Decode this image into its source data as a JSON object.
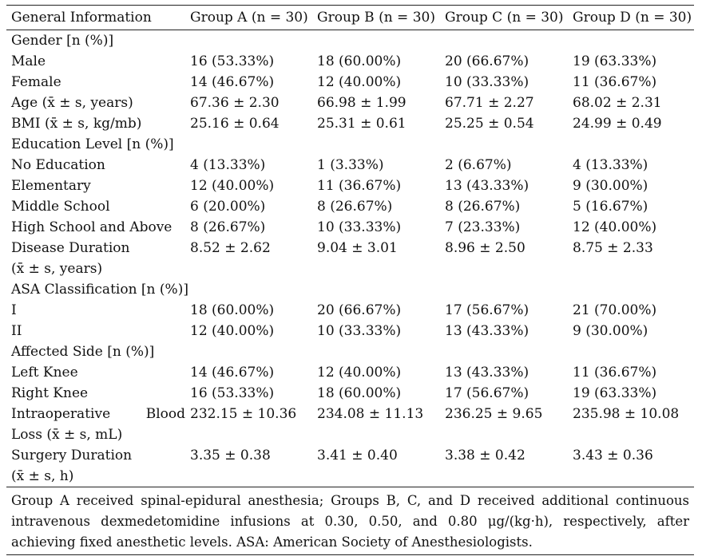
{
  "columns": [
    "General Information",
    "Group A (n = 30)",
    "Group B (n = 30)",
    "Group C (n = 30)",
    "Group D (n = 30)"
  ],
  "rows": [
    {
      "label": "Gender [n (%)]",
      "values": [
        "",
        "",
        "",
        ""
      ]
    },
    {
      "label": "Male",
      "values": [
        "16 (53.33%)",
        "18 (60.00%)",
        "20 (66.67%)",
        "19 (63.33%)"
      ]
    },
    {
      "label": "Female",
      "values": [
        "14 (46.67%)",
        "12 (40.00%)",
        "10 (33.33%)",
        "11 (36.67%)"
      ]
    },
    {
      "label": "Age (x̄  ± s, years)",
      "values": [
        "67.36 ± 2.30",
        "66.98 ± 1.99",
        "67.71 ± 2.27",
        "68.02 ± 2.31"
      ]
    },
    {
      "label": "BMI (x̄  ± s, kg/mb)",
      "values": [
        "25.16 ± 0.64",
        "25.31 ± 0.61",
        "25.25 ± 0.54",
        "24.99 ± 0.49"
      ]
    },
    {
      "label": "Education Level [n (%)]",
      "values": [
        "",
        "",
        "",
        ""
      ]
    },
    {
      "label": "No Education",
      "values": [
        "4 (13.33%)",
        "1 (3.33%)",
        "2 (6.67%)",
        "4 (13.33%)"
      ]
    },
    {
      "label": "Elementary",
      "values": [
        "12 (40.00%)",
        "11 (36.67%)",
        "13 (43.33%)",
        "9 (30.00%)"
      ]
    },
    {
      "label": "Middle School",
      "values": [
        "6 (20.00%)",
        "8 (26.67%)",
        "8 (26.67%)",
        "5 (16.67%)"
      ]
    },
    {
      "label": "High School and Above",
      "values": [
        "8 (26.67%)",
        "10 (33.33%)",
        "7 (23.33%)",
        "12 (40.00%)"
      ]
    },
    {
      "label": "Disease Duration",
      "values": [
        "8.52 ± 2.62",
        "9.04 ± 3.01",
        "8.96 ± 2.50",
        "8.75 ± 2.33"
      ]
    },
    {
      "label": "(x̄  ± s, years)",
      "values": [
        "",
        "",
        "",
        ""
      ]
    },
    {
      "label": "ASA Classification [n (%)]",
      "values": [
        "",
        "",
        "",
        ""
      ]
    },
    {
      "label": "I",
      "values": [
        "18 (60.00%)",
        "20 (66.67%)",
        "17 (56.67%)",
        "21 (70.00%)"
      ]
    },
    {
      "label": "II",
      "values": [
        "12 (40.00%)",
        "10 (33.33%)",
        "13 (43.33%)",
        "9 (30.00%)"
      ]
    },
    {
      "label": "Affected Side [n (%)]",
      "values": [
        "",
        "",
        "",
        ""
      ]
    },
    {
      "label": "Left Knee",
      "values": [
        "14 (46.67%)",
        "12 (40.00%)",
        "13 (43.33%)",
        "11 (36.67%)"
      ]
    },
    {
      "label": "Right Knee",
      "values": [
        "16 (53.33%)",
        "18 (60.00%)",
        "17 (56.67%)",
        "19 (63.33%)"
      ]
    },
    {
      "label": "Intraoperative Blood",
      "values": [
        "232.15 ± 10.36",
        "234.08 ± 11.13",
        "236.25 ± 9.65",
        "235.98 ± 10.08"
      ]
    },
    {
      "label": "Loss (x̄  ± s, mL)",
      "values": [
        "",
        "",
        "",
        ""
      ]
    },
    {
      "label": "Surgery Duration",
      "values": [
        "3.35 ± 0.38",
        "3.41 ± 0.40",
        "3.38 ± 0.42",
        "3.43 ± 0.36"
      ]
    },
    {
      "label": "(x̄  ± s, h)",
      "values": [
        "",
        "",
        "",
        ""
      ]
    }
  ],
  "footnote": "Group A received spinal-epidural anesthesia; Groups B, C, and D received additional continuous intravenous dexmedetomidine infusions at 0.30, 0.50, and 0.80 μg/(kg·h), respectively, after achieving fixed anesthetic levels. ASA: American Society of Anesthesiologists."
}
